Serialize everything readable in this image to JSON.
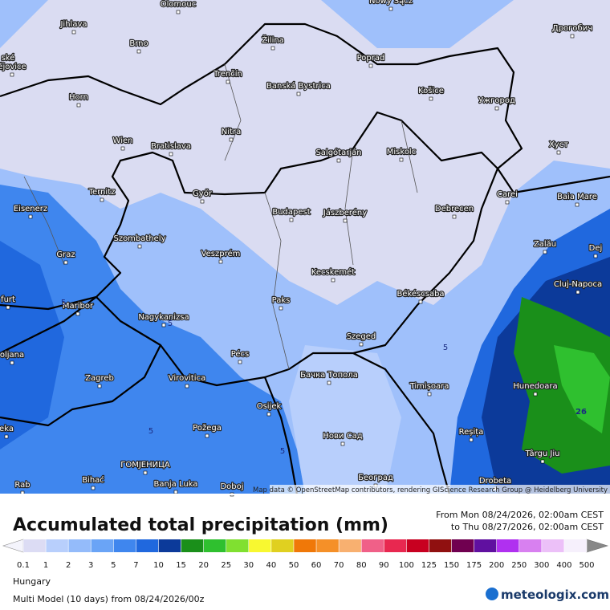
{
  "map": {
    "cities": [
      "Olomouc",
      "Nowy Sącz",
      "Jihlava",
      "Brno",
      "Žilina",
      "Poprad",
      "Дрогобич",
      "ské",
      "ějovice",
      "Trenčín",
      "Banská Bystrica",
      "Košice",
      "Horn",
      "Ужгород",
      "Nitra",
      "Wien",
      "Bratislava",
      "Salgótarján",
      "Miskolc",
      "Хуст",
      "Ternitz",
      "Győr",
      "Carei",
      "Baia Mare",
      "Eisenerz",
      "Budapest",
      "Jászberény",
      "Debrecen",
      "Szombathely",
      "Zalău",
      "Dej",
      "Graz",
      "Veszprém",
      "Kecskemét",
      "Cluj-Napoca",
      "furt",
      "Maribor",
      "Paks",
      "Békéscsaba",
      "Nagykanizsa",
      "Szeged",
      "oljana",
      "Pécs",
      "Zagreb",
      "Virovitica",
      "Бачка Топола",
      "Timișoara",
      "Hunedoara",
      "Osijek",
      "eka",
      "Požega",
      "Нови Сад",
      "Reșița",
      "Târgu Jiu",
      "ГОМЈЕНИЦА",
      "Bihać",
      "Banja Luka",
      "Doboj",
      "Београд",
      "Rab",
      "Drobeta"
    ],
    "contour_labels": [
      "5",
      "5",
      "5",
      "5",
      "5",
      "26"
    ],
    "attribution": "Map data © OpenStreetMap contributors, rendering GIScience Research Group @ Heidelberg University"
  },
  "legend": {
    "title": "Accumulated total precipitation (mm)",
    "from": "From Mon 08/24/2026, 02:00am CEST",
    "to": "to Thu 08/27/2026, 02:00am CEST",
    "values": [
      0.1,
      1,
      2,
      3,
      5,
      7,
      10,
      15,
      20,
      25,
      30,
      40,
      50,
      60,
      70,
      80,
      90,
      100,
      125,
      150,
      175,
      200,
      250,
      300,
      400,
      500
    ],
    "colors": [
      "#dcdcf4",
      "#b8cffc",
      "#94bbfa",
      "#6aa4f6",
      "#3f86ee",
      "#2068de",
      "#0c3a9a",
      "#1a8f1a",
      "#2fc02f",
      "#80e030",
      "#f8f830",
      "#e0d020",
      "#f07808",
      "#f59028",
      "#f8b070",
      "#f06088",
      "#e82850",
      "#c80020",
      "#901010",
      "#700050",
      "#6010a0",
      "#b030f0",
      "#d880f0",
      "#ecc0f8",
      "#f6f0fc"
    ]
  },
  "footer": {
    "region": "Hungary",
    "model": "Multi Model (10 days) from 08/24/2026/00z",
    "logo": "meteologix.com"
  }
}
